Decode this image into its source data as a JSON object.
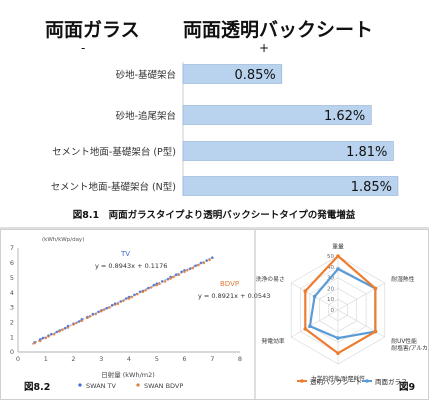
{
  "chart_data": [
    {
      "type": "bar",
      "orientation": "horizontal",
      "title": "図8.1　両面ガラスタイプより透明バックシートタイプの発電増益",
      "left_header": "両面ガラス",
      "left_sign": "-",
      "right_header": "両面透明バックシート",
      "right_sign": "+",
      "categories": [
        "砂地-基礎架台",
        "砂地-追尾架台",
        "セメント地面-基礎架台 (P型)",
        "セメント地面-基礎架台 (N型)"
      ],
      "values": [
        0.85,
        1.62,
        1.81,
        1.85
      ],
      "value_labels": [
        "0.85%",
        "1.62%",
        "1.81%",
        "1.85%"
      ],
      "xlim": [
        0,
        2.0
      ],
      "color": "#b9d3ee"
    },
    {
      "type": "scatter",
      "caption": "図8.2",
      "ylabel": "(kWh/kWp/day)",
      "xlabel": "日射量 (kWh/m2)",
      "xticks": [
        "0",
        "1",
        "2",
        "3",
        "4",
        "5",
        "6",
        "7",
        "8"
      ],
      "yticks": [
        "0",
        "1",
        "2",
        "3",
        "4",
        "5",
        "6",
        "7"
      ],
      "xlim": [
        0,
        8
      ],
      "ylim": [
        0,
        7
      ],
      "series": [
        {
          "name": "SWAN TV",
          "tag": "TV",
          "equation": "y = 0.8943x + 0.1176",
          "color": "#3b6bd6",
          "slope": 0.8943,
          "intercept": 0.1176,
          "x": [
            0.6,
            0.8,
            0.9,
            1.1,
            1.2,
            1.4,
            1.5,
            1.7,
            1.8,
            2.0,
            2.2,
            2.3,
            2.5,
            2.7,
            2.9,
            3.0,
            3.2,
            3.4,
            3.5,
            3.7,
            3.9,
            4.0,
            4.2,
            4.4,
            4.5,
            4.7,
            4.9,
            5.0,
            5.2,
            5.4,
            5.5,
            5.7,
            5.9,
            6.0,
            6.2,
            6.4,
            6.6,
            6.8,
            7.0
          ],
          "y": [
            0.65,
            0.85,
            0.95,
            1.1,
            1.2,
            1.35,
            1.45,
            1.6,
            1.75,
            1.9,
            2.05,
            2.2,
            2.35,
            2.55,
            2.7,
            2.8,
            2.95,
            3.15,
            3.25,
            3.4,
            3.6,
            3.7,
            3.85,
            4.05,
            4.1,
            4.3,
            4.5,
            4.6,
            4.75,
            4.9,
            5.05,
            5.2,
            5.4,
            5.5,
            5.6,
            5.8,
            6.0,
            6.15,
            6.35
          ]
        },
        {
          "name": "SWAN BDVP",
          "tag": "BDVP",
          "equation": "y = 0.8921x + 0.0543",
          "color": "#e07b39",
          "slope": 0.8921,
          "intercept": 0.0543,
          "x": [
            0.6,
            0.8,
            1.0,
            1.1,
            1.3,
            1.5,
            1.6,
            1.8,
            2.0,
            2.1,
            2.3,
            2.5,
            2.6,
            2.8,
            3.0,
            3.1,
            3.3,
            3.5,
            3.6,
            3.8,
            4.0,
            4.1,
            4.3,
            4.5,
            4.6,
            4.8,
            5.0,
            5.1,
            5.3,
            5.5,
            5.6,
            5.8,
            6.0,
            6.1,
            6.3,
            6.5,
            6.7,
            6.9
          ],
          "y": [
            0.6,
            0.75,
            0.95,
            1.05,
            1.2,
            1.4,
            1.5,
            1.65,
            1.85,
            1.95,
            2.1,
            2.3,
            2.4,
            2.55,
            2.75,
            2.85,
            3.0,
            3.2,
            3.25,
            3.45,
            3.6,
            3.7,
            3.9,
            4.05,
            4.15,
            4.35,
            4.5,
            4.6,
            4.75,
            4.95,
            5.05,
            5.2,
            5.4,
            5.5,
            5.65,
            5.85,
            6.0,
            6.2
          ]
        }
      ]
    },
    {
      "type": "radar",
      "caption": "図9",
      "axes": [
        "重量",
        "耐湿熱性",
        "耐UV性能\n耐塩害/アルカリ性",
        "力学的性能/耐摩耗性",
        "発電効率",
        "洗浄の易さ"
      ],
      "rlim": [
        0,
        50
      ],
      "rticks": [
        "0",
        "10",
        "20",
        "30",
        "40",
        "50"
      ],
      "series": [
        {
          "name": "透明バックシート",
          "color": "#ed7d31",
          "values": [
            50,
            40,
            40,
            40,
            35,
            35
          ]
        },
        {
          "name": "両面ガラス",
          "color": "#5b9bd5",
          "values": [
            38,
            40,
            40,
            26,
            30,
            25
          ]
        }
      ]
    }
  ]
}
